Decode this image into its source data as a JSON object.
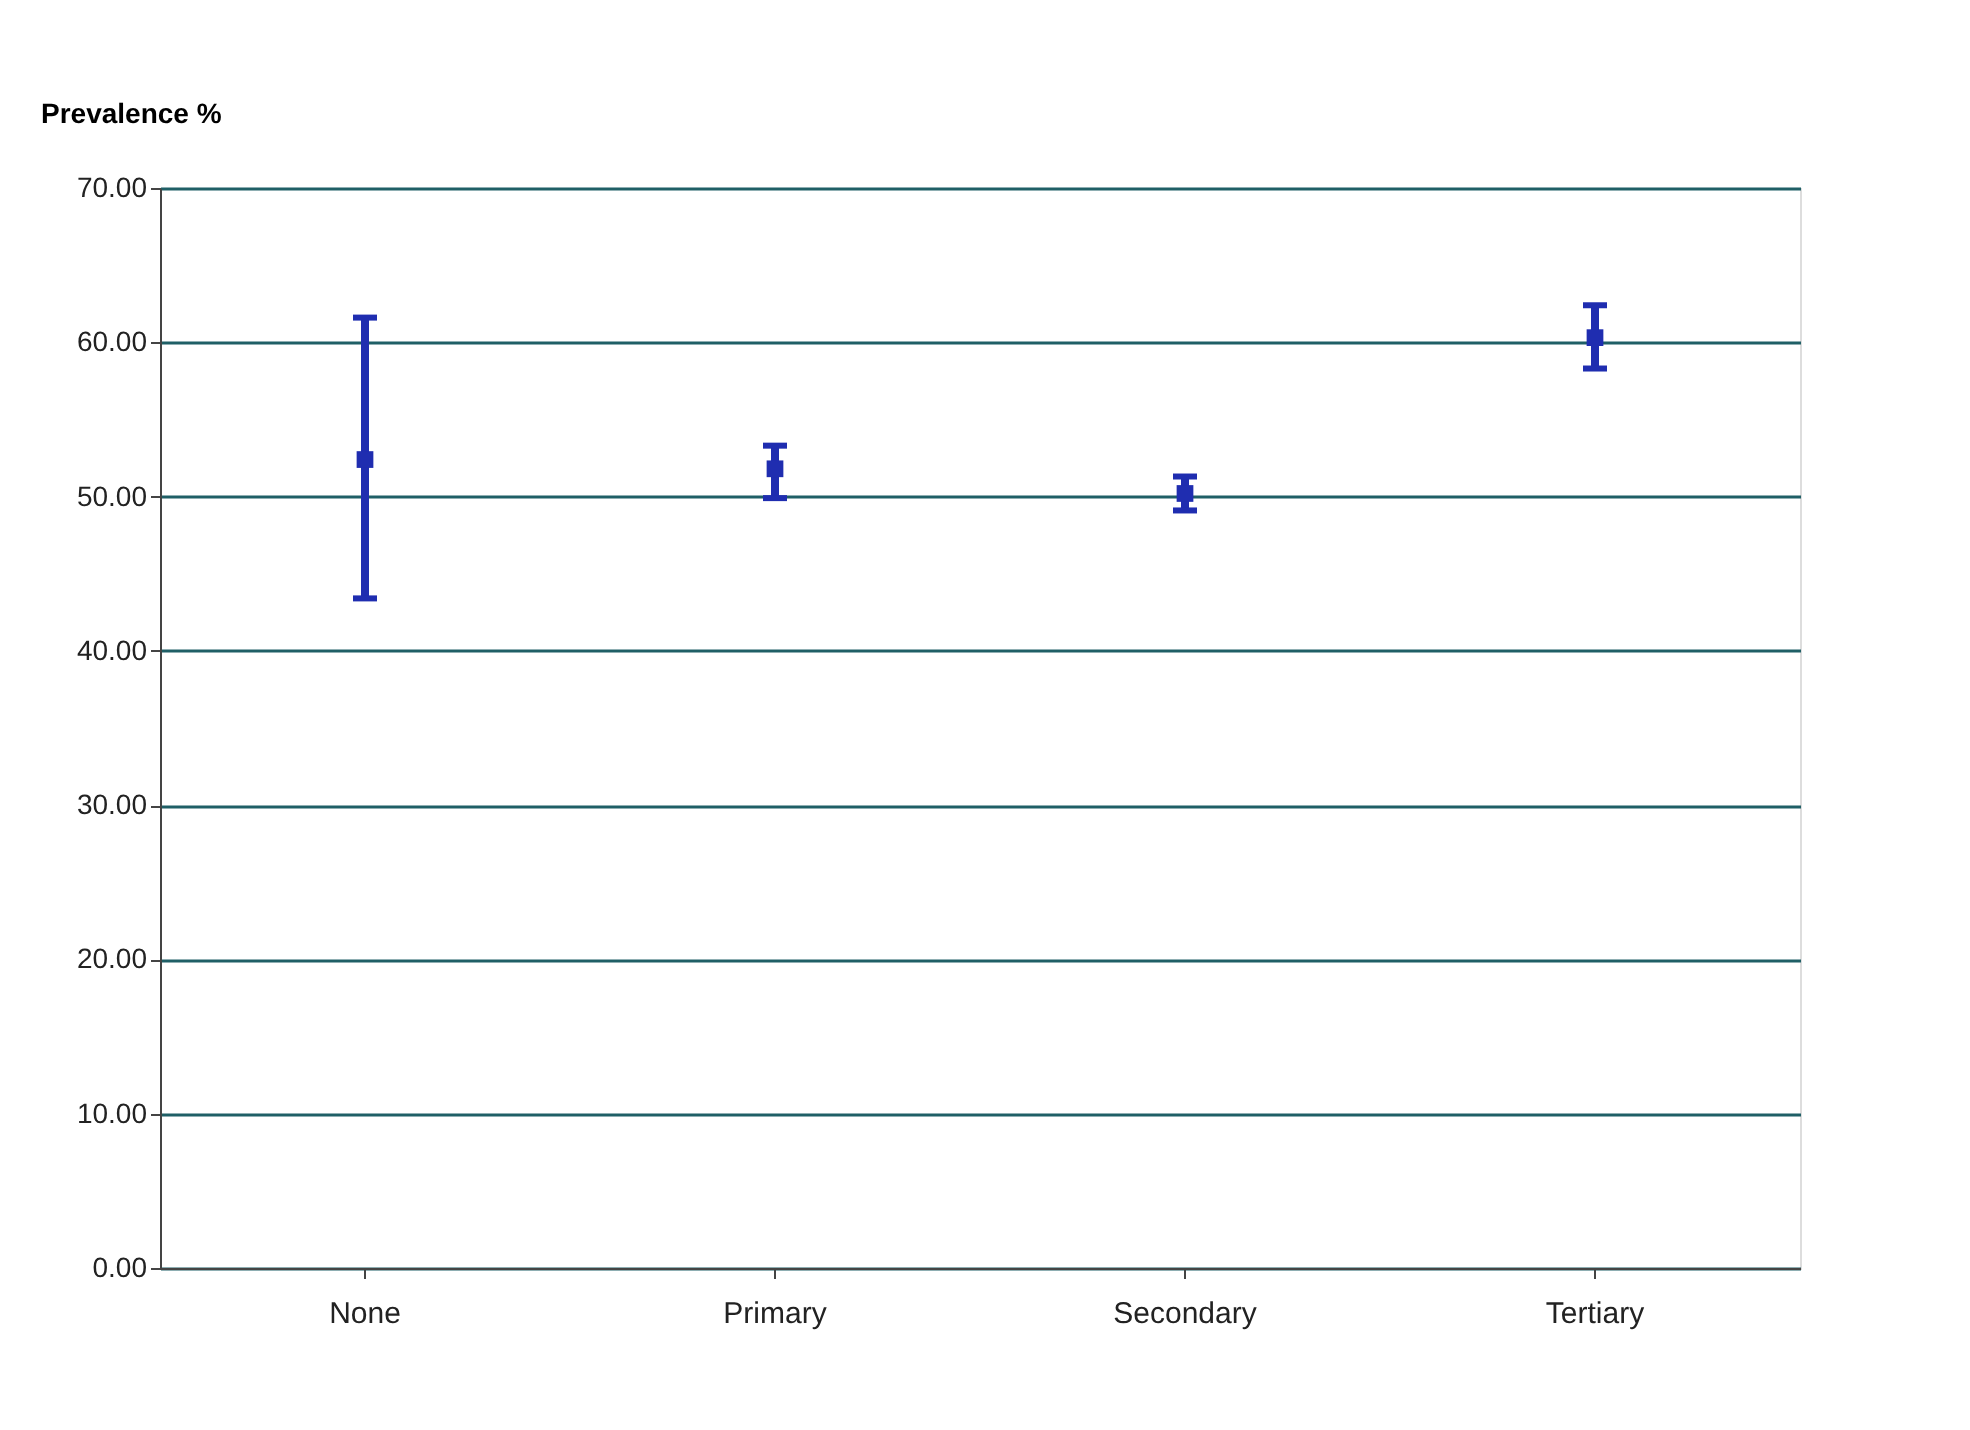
{
  "chart_data": {
    "type": "scatter",
    "ylabel": "Prevalence %",
    "categories": [
      "None",
      "Primary",
      "Secondary",
      "Tertiary"
    ],
    "series": [
      {
        "color": "#1f2db0",
        "values": [
          52.4,
          51.8,
          50.2,
          60.3
        ],
        "errors": [
          [
            43.4,
            61.6
          ],
          [
            49.9,
            53.3
          ],
          [
            49.1,
            51.3
          ],
          [
            58.3,
            62.4
          ]
        ]
      }
    ],
    "ylim": [
      0,
      70
    ],
    "yticks": [
      {
        "value": 0,
        "label": "0.00"
      },
      {
        "value": 10,
        "label": "10.00"
      },
      {
        "value": 20,
        "label": "20.00"
      },
      {
        "value": 30,
        "label": "30.00"
      },
      {
        "value": 40,
        "label": "40.00"
      },
      {
        "value": 50,
        "label": "50.00"
      },
      {
        "value": 60,
        "label": "60.00"
      },
      {
        "value": 70,
        "label": "70.00"
      }
    ],
    "grid": "y",
    "legend": false,
    "marker": "square"
  }
}
